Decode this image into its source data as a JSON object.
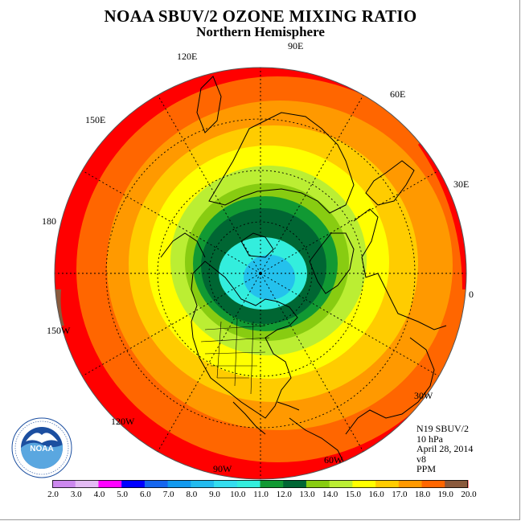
{
  "header": {
    "title": "NOAA SBUV/2 OZONE MIXING RATIO",
    "subtitle": "Northern Hemisphere"
  },
  "longitude_labels": [
    "90E",
    "120E",
    "60E",
    "150E",
    "30E",
    "180",
    "0",
    "150W",
    "30W",
    "120W",
    "60W",
    "90W"
  ],
  "info": {
    "satellite": "N19 SBUV/2",
    "pressure": "10 hPa",
    "date": "April 28, 2014",
    "version": "v8",
    "units": "PPM"
  },
  "logo": {
    "text": "NOAA",
    "ring_text": "NATIONAL OCEANIC AND ATMOSPHERIC ADMINISTRATION • U.S. DEPARTMENT OF COMMERCE"
  },
  "colorbar": {
    "ticks": [
      "2.0",
      "3.0",
      "4.0",
      "5.0",
      "6.0",
      "7.0",
      "8.0",
      "9.0",
      "10.0",
      "11.0",
      "12.0",
      "13.0",
      "14.0",
      "15.0",
      "16.0",
      "17.0",
      "18.0",
      "19.0",
      "20.0"
    ],
    "colors": [
      "#cc88ee",
      "#e4bbf4",
      "#ff00ff",
      "#0000ff",
      "#1566ee",
      "#1199ee",
      "#22bbee",
      "#33ddee",
      "#33eedd",
      "#119933",
      "#006633",
      "#88cc11",
      "#bbee33",
      "#ffff00",
      "#ffcc00",
      "#ff9900",
      "#ff6600",
      "#ff0000",
      "#8b5a3c"
    ]
  }
}
